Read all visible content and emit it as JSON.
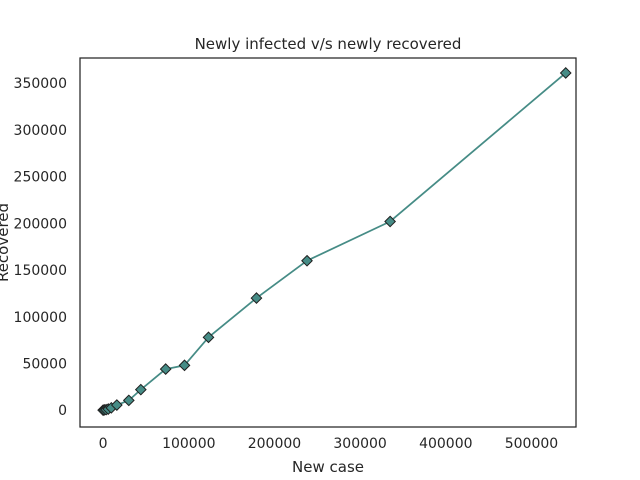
{
  "chart_data": {
    "type": "line",
    "title": "Newly infected v/s newly recovered",
    "xlabel": "New case",
    "ylabel": "Recovered",
    "xlim": [
      -27000,
      552000
    ],
    "ylim": [
      -18000,
      377000
    ],
    "x_ticks": [
      0,
      100000,
      200000,
      300000,
      400000,
      500000
    ],
    "y_ticks": [
      0,
      50000,
      100000,
      150000,
      200000,
      250000,
      300000,
      350000
    ],
    "grid": false,
    "series": [
      {
        "color": "#468c86",
        "marker": "diamond",
        "marker_edge_color": "#1f1f1f",
        "x": [
          0,
          1500,
          3500,
          6000,
          9500,
          16000,
          30000,
          44000,
          73000,
          95000,
          123000,
          179000,
          238000,
          335000,
          540000
        ],
        "y": [
          0,
          300,
          600,
          1200,
          2500,
          5500,
          10500,
          22000,
          44000,
          48000,
          78000,
          120000,
          160000,
          202000,
          361000
        ]
      }
    ]
  }
}
